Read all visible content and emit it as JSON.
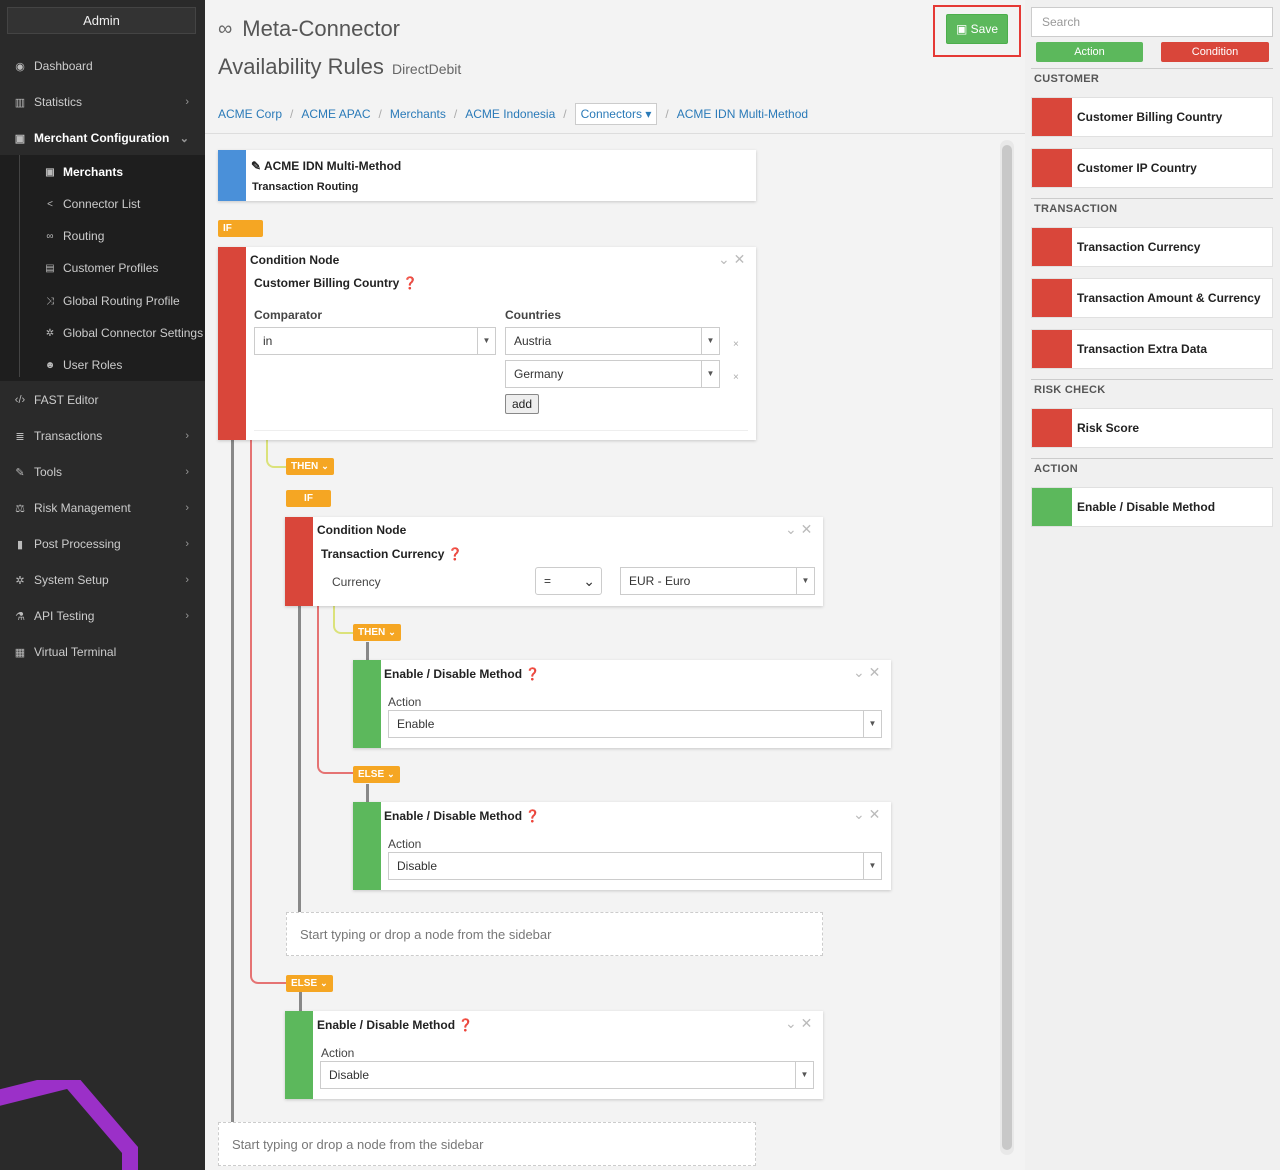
{
  "sidebar": {
    "admin_label": "Admin",
    "items": [
      {
        "label": "Dashboard",
        "icon": "dashboard-icon",
        "glyph": "◉"
      },
      {
        "label": "Statistics",
        "icon": "bar-chart-icon",
        "glyph": "▥"
      },
      {
        "label": "Merchant Configuration",
        "icon": "briefcase-icon",
        "glyph": "▣"
      },
      {
        "label": "FAST Editor",
        "icon": "code-icon",
        "glyph": "‹/›"
      },
      {
        "label": "Transactions",
        "icon": "list-icon",
        "glyph": "≣"
      },
      {
        "label": "Tools",
        "icon": "wrench-icon",
        "glyph": "✎"
      },
      {
        "label": "Risk Management",
        "icon": "scale-icon",
        "glyph": "⚖"
      },
      {
        "label": "Post Processing",
        "icon": "file-icon",
        "glyph": "▮"
      },
      {
        "label": "System Setup",
        "icon": "gear-icon",
        "glyph": "✲"
      },
      {
        "label": "API Testing",
        "icon": "flask-icon",
        "glyph": "⚗"
      },
      {
        "label": "Virtual Terminal",
        "icon": "terminal-icon",
        "glyph": "▦"
      }
    ],
    "subitems": [
      {
        "label": "Merchants",
        "icon": "briefcase-icon",
        "glyph": "▣"
      },
      {
        "label": "Connector List",
        "icon": "share-icon",
        "glyph": "<"
      },
      {
        "label": "Routing",
        "icon": "link-icon",
        "glyph": "∞"
      },
      {
        "label": "Customer Profiles",
        "icon": "profile-icon",
        "glyph": "▤"
      },
      {
        "label": "Global Routing Profile",
        "icon": "shuffle-icon",
        "glyph": "⤨"
      },
      {
        "label": "Global Connector Settings",
        "icon": "cog-icon",
        "glyph": "✲"
      },
      {
        "label": "User Roles",
        "icon": "users-icon",
        "glyph": "☻"
      }
    ]
  },
  "header": {
    "title": "Meta-Connector",
    "subtitle": "Availability Rules",
    "subtitle_small": "DirectDebit",
    "save_label": "Save"
  },
  "breadcrumb": {
    "items": [
      "ACME Corp",
      "ACME APAC",
      "Merchants",
      "ACME Indonesia"
    ],
    "dropdown": "Connectors",
    "last": "ACME IDN Multi-Method"
  },
  "tags": {
    "if": "IF",
    "then": "THEN",
    "else": "ELSE"
  },
  "root_node": {
    "title": "ACME IDN Multi-Method",
    "subtitle": "Transaction Routing"
  },
  "cond1": {
    "title": "Condition Node",
    "subtitle": "Customer Billing Country",
    "comparator_label": "Comparator",
    "comparator_value": "in",
    "countries_label": "Countries",
    "countries": [
      "Austria",
      "Germany"
    ],
    "add_label": "add"
  },
  "cond2": {
    "title": "Condition Node",
    "subtitle": "Transaction Currency",
    "field_label": "Currency",
    "operator": "=",
    "value": "EUR - Euro"
  },
  "act_then": {
    "title": "Enable / Disable Method",
    "label": "Action",
    "value": "Enable"
  },
  "act_else_inner": {
    "title": "Enable / Disable Method",
    "label": "Action",
    "value": "Disable"
  },
  "act_else_outer": {
    "title": "Enable / Disable Method",
    "label": "Action",
    "value": "Disable"
  },
  "dropzone_text": "Start typing or drop a node from the sidebar",
  "palette": {
    "search_placeholder": "Search",
    "filter_action": "Action",
    "filter_condition": "Condition",
    "sections": [
      {
        "name": "CUSTOMER",
        "items": [
          "Customer Billing Country",
          "Customer IP Country"
        ]
      },
      {
        "name": "TRANSACTION",
        "items": [
          "Transaction Currency",
          "Transaction Amount & Currency",
          "Transaction Extra Data"
        ]
      },
      {
        "name": "RISK CHECK",
        "items": [
          "Risk Score"
        ]
      },
      {
        "name": "ACTION",
        "items": [
          "Enable / Disable Method"
        ]
      }
    ]
  },
  "colors": {
    "condition": "#d9463a",
    "action": "#5cb85c",
    "root": "#4a90d9",
    "tag": "#f5a623",
    "save": "#5cb85c"
  }
}
